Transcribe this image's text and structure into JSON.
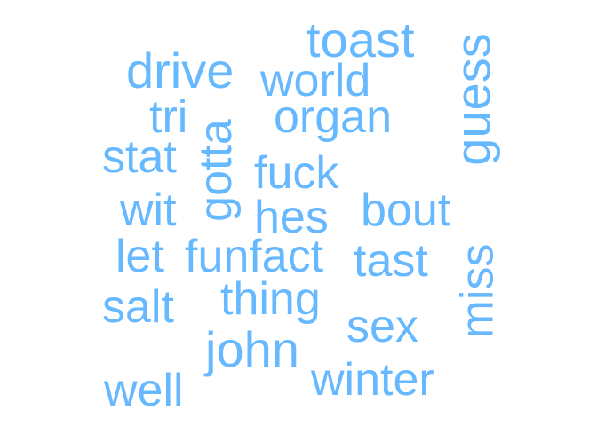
{
  "color": "#66b8ff",
  "words": [
    "toast",
    "drive",
    "world",
    "guess",
    "tri",
    "organ",
    "gotta",
    "stat",
    "fuck",
    "wit",
    "hes",
    "bout",
    "let",
    "funfact",
    "tast",
    "miss",
    "salt",
    "thing",
    "sex",
    "john",
    "well",
    "winter"
  ]
}
